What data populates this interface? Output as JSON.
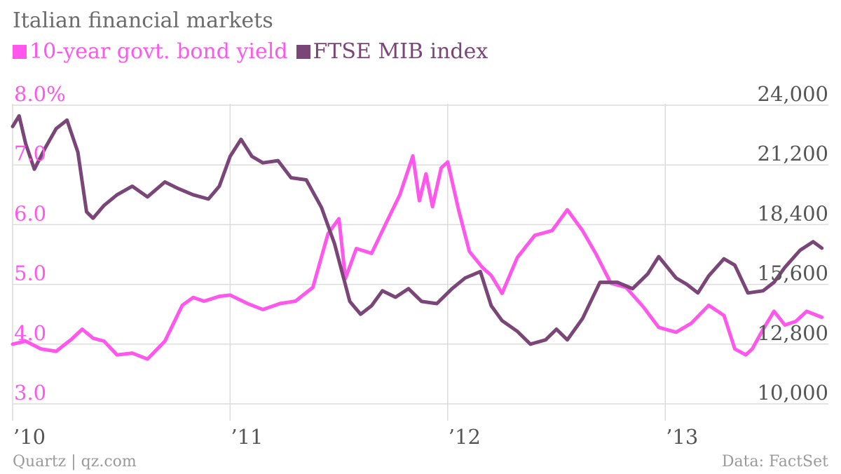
{
  "chart_data": {
    "type": "line",
    "title": "Italian financial markets",
    "source_left": "Quartz | qz.com",
    "source_right": "Data: FactSet",
    "colors": {
      "yield": "#ff56ec",
      "ftse": "#7a4577",
      "grid": "#dcdcdc"
    },
    "x_range": [
      2010.0,
      2013.75
    ],
    "x_ticks": [
      {
        "value": 2010,
        "label": "’10"
      },
      {
        "value": 2011,
        "label": "’11"
      },
      {
        "value": 2012,
        "label": "’12"
      },
      {
        "value": 2013,
        "label": "’13"
      }
    ],
    "y_left": {
      "range": [
        3.0,
        8.0
      ],
      "ticks": [
        {
          "value": 3.0,
          "label": "3.0"
        },
        {
          "value": 4.0,
          "label": "4.0"
        },
        {
          "value": 5.0,
          "label": "5.0"
        },
        {
          "value": 6.0,
          "label": "6.0"
        },
        {
          "value": 7.0,
          "label": "7.0"
        },
        {
          "value": 8.0,
          "label": "8.0%"
        }
      ]
    },
    "y_right": {
      "range": [
        10000,
        24000
      ],
      "ticks": [
        {
          "value": 10000,
          "label": "10,000"
        },
        {
          "value": 12800,
          "label": "12,800"
        },
        {
          "value": 15600,
          "label": "15,600"
        },
        {
          "value": 18400,
          "label": "18,400"
        },
        {
          "value": 21200,
          "label": "21,200"
        },
        {
          "value": 24000,
          "label": "24,000"
        }
      ]
    },
    "series": [
      {
        "name": "10-year govt. bond yield",
        "axis": "left",
        "x": [
          2010.0,
          2010.06,
          2010.13,
          2010.2,
          2010.27,
          2010.32,
          2010.37,
          2010.42,
          2010.48,
          2010.55,
          2010.62,
          2010.7,
          2010.78,
          2010.83,
          2010.88,
          2010.95,
          2011.0,
          2011.08,
          2011.15,
          2011.23,
          2011.3,
          2011.38,
          2011.45,
          2011.5,
          2011.53,
          2011.58,
          2011.65,
          2011.72,
          2011.78,
          2011.84,
          2011.87,
          2011.9,
          2011.93,
          2011.97,
          2012.0,
          2012.05,
          2012.1,
          2012.16,
          2012.2,
          2012.25,
          2012.32,
          2012.4,
          2012.48,
          2012.55,
          2012.62,
          2012.68,
          2012.75,
          2012.82,
          2012.9,
          2012.97,
          2013.05,
          2013.12,
          2013.2,
          2013.27,
          2013.32,
          2013.37,
          2013.4,
          2013.45,
          2013.5,
          2013.55,
          2013.6,
          2013.65,
          2013.72
        ],
        "values": [
          4.0,
          4.05,
          3.92,
          3.88,
          4.08,
          4.25,
          4.1,
          4.05,
          3.82,
          3.85,
          3.75,
          4.05,
          4.65,
          4.78,
          4.72,
          4.8,
          4.82,
          4.68,
          4.58,
          4.68,
          4.72,
          4.95,
          5.85,
          6.1,
          5.1,
          5.6,
          5.52,
          6.05,
          6.5,
          7.15,
          6.4,
          6.85,
          6.3,
          6.95,
          7.05,
          6.25,
          5.55,
          5.28,
          5.15,
          4.85,
          5.45,
          5.82,
          5.9,
          6.25,
          5.9,
          5.52,
          5.02,
          4.95,
          4.62,
          4.28,
          4.2,
          4.35,
          4.65,
          4.48,
          3.92,
          3.82,
          3.92,
          4.25,
          4.55,
          4.32,
          4.38,
          4.55,
          4.45
        ]
      },
      {
        "name": "FTSE MIB index",
        "axis": "right",
        "x": [
          2010.0,
          2010.03,
          2010.06,
          2010.1,
          2010.15,
          2010.2,
          2010.25,
          2010.3,
          2010.34,
          2010.37,
          2010.42,
          2010.48,
          2010.55,
          2010.62,
          2010.7,
          2010.76,
          2010.83,
          2010.9,
          2010.95,
          2011.0,
          2011.05,
          2011.1,
          2011.15,
          2011.22,
          2011.28,
          2011.35,
          2011.42,
          2011.48,
          2011.55,
          2011.6,
          2011.65,
          2011.7,
          2011.76,
          2011.82,
          2011.88,
          2011.95,
          2012.02,
          2012.08,
          2012.15,
          2012.2,
          2012.25,
          2012.32,
          2012.38,
          2012.45,
          2012.5,
          2012.55,
          2012.62,
          2012.7,
          2012.78,
          2012.85,
          2012.92,
          2012.97,
          2013.05,
          2013.1,
          2013.15,
          2013.2,
          2013.27,
          2013.32,
          2013.38,
          2013.45,
          2013.5,
          2013.55,
          2013.62,
          2013.68,
          2013.72
        ],
        "values": [
          23000,
          23500,
          22200,
          21000,
          22000,
          22900,
          23300,
          21800,
          19000,
          18700,
          19300,
          19800,
          20200,
          19700,
          20400,
          20100,
          19800,
          19600,
          20200,
          21600,
          22400,
          21600,
          21300,
          21400,
          20600,
          20500,
          19200,
          17500,
          14800,
          14200,
          14600,
          15300,
          15000,
          15400,
          14800,
          14700,
          15400,
          15900,
          16200,
          14600,
          13900,
          13400,
          12800,
          13000,
          13500,
          13000,
          14000,
          15700,
          15700,
          15400,
          16100,
          16900,
          15900,
          15600,
          15200,
          16000,
          16800,
          16500,
          15200,
          15300,
          15700,
          16400,
          17200,
          17600,
          17300
        ]
      }
    ]
  }
}
